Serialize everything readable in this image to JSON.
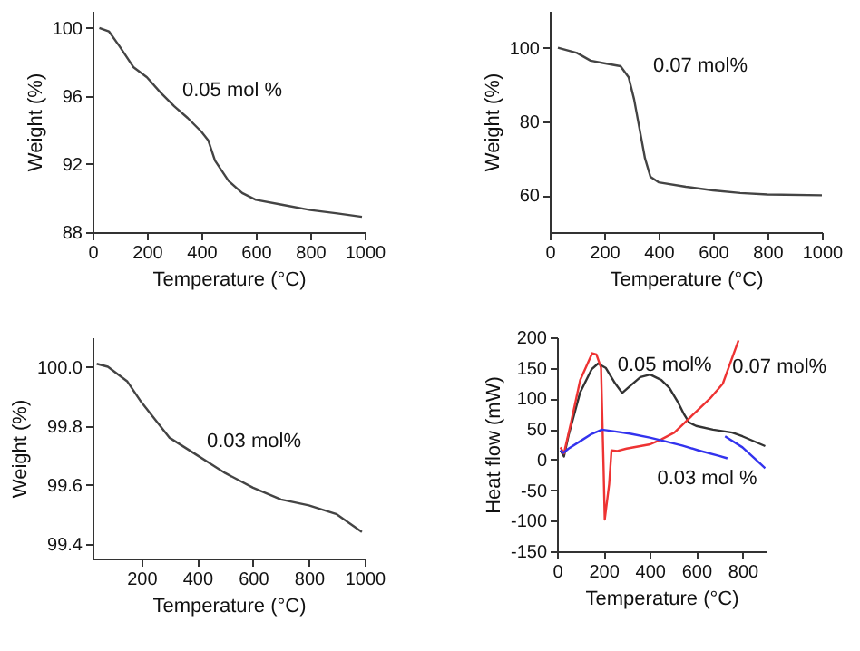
{
  "chart_data": [
    {
      "type": "line",
      "xlabel": "Temperature (°C)",
      "ylabel": "Weight (%)",
      "xlim": [
        0,
        1000
      ],
      "xticks": [
        0,
        200,
        400,
        600,
        800,
        1000
      ],
      "ylim": [
        88,
        101
      ],
      "yticks": [
        88,
        92,
        96,
        100
      ],
      "x": [
        25,
        60,
        100,
        150,
        200,
        250,
        300,
        350,
        400,
        425,
        450,
        500,
        550,
        600,
        700,
        800,
        900,
        990
      ],
      "series": [
        {
          "color": "#444444",
          "values": [
            100,
            99.8,
            98.9,
            97.7,
            97.1,
            96.2,
            95.4,
            94.7,
            93.9,
            93.4,
            92.2,
            91.0,
            90.3,
            89.9,
            89.6,
            89.3,
            89.1,
            88.9
          ]
        }
      ],
      "annotations": [
        "0.05 mol %"
      ]
    },
    {
      "type": "line",
      "xlabel": "Temperature (°C)",
      "ylabel": "Weight (%)",
      "xlim": [
        0,
        1000
      ],
      "xticks": [
        0,
        200,
        400,
        600,
        800,
        1000
      ],
      "ylim": [
        50,
        110
      ],
      "yticks": [
        60,
        80,
        100
      ],
      "x": [
        30,
        100,
        150,
        200,
        260,
        290,
        310,
        330,
        350,
        370,
        400,
        500,
        600,
        700,
        800,
        1000
      ],
      "series": [
        {
          "color": "#444444",
          "values": [
            100,
            98.6,
            96.5,
            95.8,
            95,
            92,
            86,
            78,
            70,
            65,
            63.5,
            62.3,
            61.3,
            60.6,
            60.2,
            60
          ]
        }
      ],
      "annotations": [
        "0.07 mol%"
      ]
    },
    {
      "type": "line",
      "xlabel": "Temperature (°C)",
      "ylabel": "Weight (%)",
      "xlim": [
        25,
        1000
      ],
      "xticks": [
        200,
        400,
        600,
        800,
        {
          "value": 1000,
          "label": "1000"
        }
      ],
      "ylim": [
        99.35,
        100.1
      ],
      "yticks": [
        {
          "value": 99.4,
          "label": "99.4"
        },
        {
          "value": 99.6,
          "label": "99.6"
        },
        {
          "value": 99.8,
          "label": "99.8"
        },
        {
          "value": 100,
          "label": "100.0"
        }
      ],
      "x": [
        40,
        80,
        150,
        200,
        250,
        300,
        400,
        500,
        600,
        700,
        800,
        900,
        990
      ],
      "series": [
        {
          "color": "#444444",
          "values": [
            100.01,
            100.0,
            99.95,
            99.88,
            99.82,
            99.76,
            99.7,
            99.64,
            99.59,
            99.55,
            99.53,
            99.5,
            99.44
          ]
        }
      ],
      "annotations": [
        "0.03 mol%"
      ]
    },
    {
      "type": "line",
      "xlabel": "Temperature (°C)",
      "ylabel": "Heat flow (mW)",
      "xlim": [
        0,
        900
      ],
      "xticks": [
        0,
        200,
        400,
        600,
        800
      ],
      "ylim": [
        -150,
        200
      ],
      "yticks": [
        -150,
        -100,
        -50,
        0,
        50,
        100,
        150,
        200
      ],
      "series": [
        {
          "color": "#333333",
          "x": [
            15,
            30,
            50,
            100,
            150,
            177,
            210,
            250,
            281,
            320,
            360,
            402,
            450,
            485,
            520,
            548,
            569,
            600,
            673,
            756,
            800,
            898
          ],
          "values": [
            15,
            5,
            40,
            110,
            148,
            157,
            150,
            125,
            109,
            122,
            135,
            139,
            130,
            117,
            95,
            74,
            61,
            55,
            49,
            44,
            38,
            22
          ]
        },
        {
          "color": "#ee3333",
          "x": [
            15,
            30,
            60,
            100,
            152,
            170,
            190,
            200,
            206,
            225,
            235,
            260,
            300,
            402,
            450,
            506,
            550,
            610,
            660,
            715,
            783
          ],
          "values": [
            20,
            10,
            60,
            130,
            174,
            172,
            150,
            0,
            -98,
            -40,
            15,
            14,
            18,
            25,
            33,
            44,
            60,
            82,
            100,
            124,
            195
          ]
        },
        {
          "color": "#3333ee",
          "x": [
            15,
            27,
            50,
            100,
            150,
            194,
            250,
            319,
            400,
            465,
            540,
            610,
            700,
            735
          ],
          "values": [
            15,
            11,
            18,
            30,
            42,
            49,
            46,
            42,
            36,
            30,
            23,
            15,
            6,
            2
          ]
        },
        {
          "color": "#3333ee",
          "x": [
            725,
            800,
            898
          ],
          "values": [
            38,
            20,
            -14
          ]
        }
      ],
      "annotations": [
        "0.05 mol%",
        "0.07 mol%",
        "0.03 mol %"
      ]
    }
  ]
}
